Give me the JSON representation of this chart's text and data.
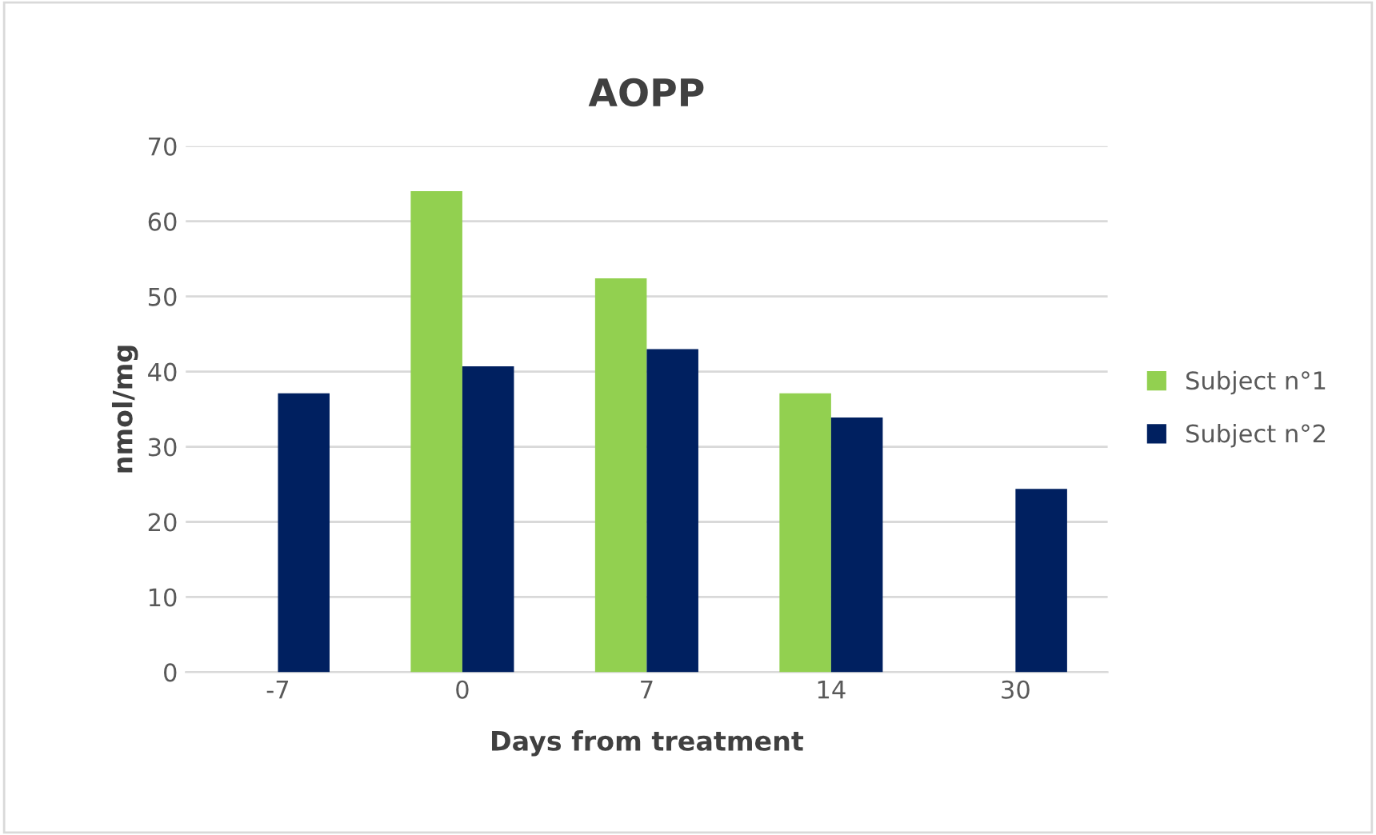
{
  "chart_data": {
    "type": "bar",
    "title": "AOPP",
    "xlabel": "Days from treatment",
    "ylabel": "nmol/mg",
    "categories": [
      "-7",
      "0",
      "7",
      "14",
      "30"
    ],
    "series": [
      {
        "name": "Subject n°1",
        "color": "#92d050",
        "values": [
          null,
          64,
          52.4,
          37.1,
          null
        ]
      },
      {
        "name": "Subject n°2",
        "color": "#002060",
        "values": [
          37.1,
          40.7,
          43.0,
          33.9,
          24.4
        ]
      }
    ],
    "ylim": [
      0,
      70
    ],
    "yticks": [
      0,
      10,
      20,
      30,
      40,
      50,
      60,
      70
    ],
    "grid": "y",
    "legend": "right"
  }
}
